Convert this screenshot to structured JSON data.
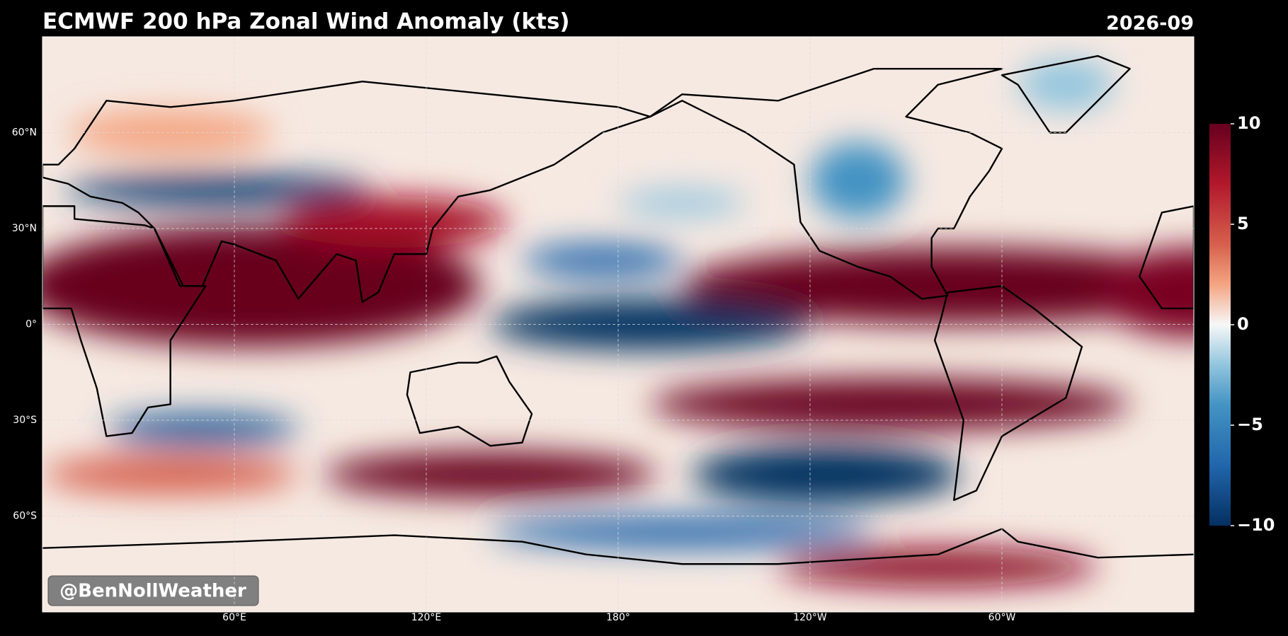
{
  "header": {
    "title": "ECMWF 200 hPa Zonal Wind Anomaly (kts)",
    "date": "2026-09"
  },
  "map": {
    "lon_range": [
      0,
      360
    ],
    "lat_range": [
      -90,
      90
    ],
    "lat_ticks": [
      {
        "value": 60,
        "label": "60°N"
      },
      {
        "value": 30,
        "label": "30°N"
      },
      {
        "value": 0,
        "label": "0°"
      },
      {
        "value": -30,
        "label": "30°S"
      },
      {
        "value": -60,
        "label": "60°S"
      }
    ],
    "lon_ticks": [
      {
        "value": 60,
        "label": "60°E"
      },
      {
        "value": 120,
        "label": "120°E"
      },
      {
        "value": 180,
        "label": "180°"
      },
      {
        "value": -120,
        "label": "120°W"
      },
      {
        "value": -60,
        "label": "60°W"
      }
    ],
    "grid": true
  },
  "colorbar": {
    "range": [
      -10,
      10
    ],
    "ticks": [
      10,
      5,
      0,
      {
        "value": -5,
        "label": "−5"
      },
      {
        "value": -10,
        "label": "−10"
      }
    ]
  },
  "watermark": "@BenNollWeather"
}
